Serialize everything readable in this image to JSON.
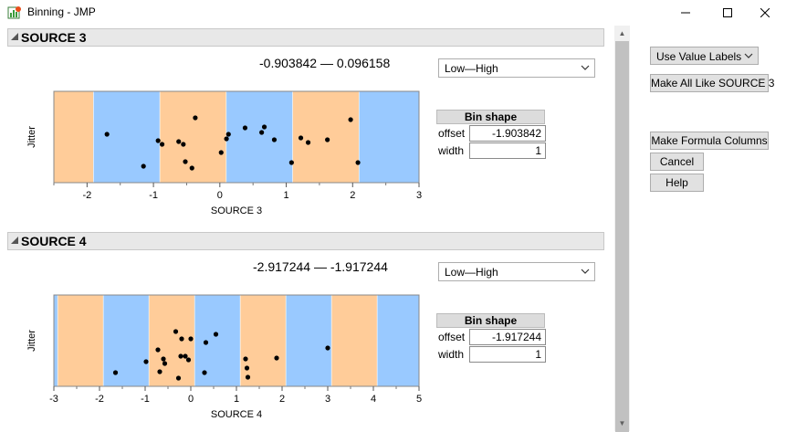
{
  "window": {
    "title": "Binning - JMP",
    "minimize_glyph": "—",
    "maximize_glyph": "☐",
    "close_glyph": "✕"
  },
  "sections": [
    {
      "title": "SOURCE 3",
      "range_text": "-0.903842 — 0.096158",
      "order_select": "Low—High",
      "ylabel": "Jitter",
      "xlabel": "SOURCE 3",
      "x_ticks": [
        "-2",
        "-1",
        "0",
        "1",
        "2",
        "3"
      ],
      "bin_table": {
        "header": "Bin shape",
        "offset_label": "offset",
        "offset_value": "-1.903842",
        "width_label": "width",
        "width_value": "1"
      }
    },
    {
      "title": "SOURCE 4",
      "range_text": "-2.917244 — -1.917244",
      "order_select": "Low—High",
      "ylabel": "Jitter",
      "xlabel": "SOURCE 4",
      "x_ticks": [
        "-3",
        "-2",
        "-1",
        "0",
        "1",
        "2",
        "3",
        "4",
        "5"
      ],
      "bin_table": {
        "header": "Bin shape",
        "offset_label": "offset",
        "offset_value": "-1.917244",
        "width_label": "width",
        "width_value": "1"
      }
    }
  ],
  "side_panel": {
    "value_labels_select": "Use Value Labels",
    "make_all_like_button": "Make All Like SOURCE 3",
    "make_formula_button": "Make Formula Columns",
    "cancel_button": "Cancel",
    "help_button": "Help"
  },
  "colors": {
    "bin_blue": "#99c9ff",
    "bin_orange": "#ffcc99",
    "point": "#000000"
  },
  "chart_data": [
    {
      "type": "scatter",
      "xlabel": "SOURCE 3",
      "ylabel": "Jitter",
      "xlim": [
        -2.5,
        3
      ],
      "bin_offset": -1.903842,
      "bin_width": 1,
      "points": [
        {
          "x": -1.7,
          "y": 0.53
        },
        {
          "x": -1.15,
          "y": 0.18
        },
        {
          "x": -0.93,
          "y": 0.46
        },
        {
          "x": -0.87,
          "y": 0.42
        },
        {
          "x": -0.62,
          "y": 0.45
        },
        {
          "x": -0.55,
          "y": 0.42
        },
        {
          "x": -0.52,
          "y": 0.23
        },
        {
          "x": -0.42,
          "y": 0.16
        },
        {
          "x": -0.37,
          "y": 0.71
        },
        {
          "x": 0.02,
          "y": 0.33
        },
        {
          "x": 0.1,
          "y": 0.48
        },
        {
          "x": 0.13,
          "y": 0.53
        },
        {
          "x": 0.38,
          "y": 0.6
        },
        {
          "x": 0.63,
          "y": 0.55
        },
        {
          "x": 0.67,
          "y": 0.61
        },
        {
          "x": 0.82,
          "y": 0.47
        },
        {
          "x": 1.08,
          "y": 0.22
        },
        {
          "x": 1.22,
          "y": 0.49
        },
        {
          "x": 1.33,
          "y": 0.44
        },
        {
          "x": 1.62,
          "y": 0.47
        },
        {
          "x": 1.97,
          "y": 0.69
        },
        {
          "x": 2.08,
          "y": 0.22
        }
      ]
    },
    {
      "type": "scatter",
      "xlabel": "SOURCE 4",
      "ylabel": "Jitter",
      "xlim": [
        -3,
        5
      ],
      "bin_offset": -1.917244,
      "bin_width": 1,
      "points": [
        {
          "x": -1.65,
          "y": 0.15
        },
        {
          "x": -0.98,
          "y": 0.27
        },
        {
          "x": -0.72,
          "y": 0.4
        },
        {
          "x": -0.68,
          "y": 0.16
        },
        {
          "x": -0.6,
          "y": 0.3
        },
        {
          "x": -0.57,
          "y": 0.25
        },
        {
          "x": -0.33,
          "y": 0.6
        },
        {
          "x": -0.27,
          "y": 0.09
        },
        {
          "x": -0.22,
          "y": 0.33
        },
        {
          "x": -0.2,
          "y": 0.52
        },
        {
          "x": -0.12,
          "y": 0.33
        },
        {
          "x": -0.05,
          "y": 0.29
        },
        {
          "x": 0.0,
          "y": 0.52
        },
        {
          "x": 0.3,
          "y": 0.15
        },
        {
          "x": 0.33,
          "y": 0.48
        },
        {
          "x": 0.55,
          "y": 0.57
        },
        {
          "x": 1.2,
          "y": 0.3
        },
        {
          "x": 1.23,
          "y": 0.2
        },
        {
          "x": 1.25,
          "y": 0.1
        },
        {
          "x": 1.88,
          "y": 0.31
        },
        {
          "x": 3.0,
          "y": 0.42
        }
      ]
    }
  ]
}
